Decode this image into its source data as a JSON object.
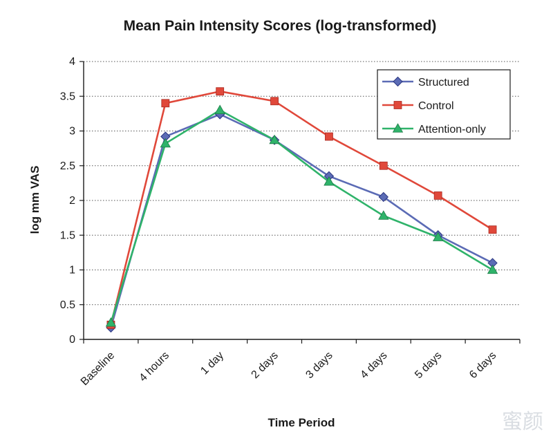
{
  "chart_data": {
    "type": "line",
    "title": "Mean Pain Intensity Scores (log-transformed)",
    "xlabel": "Time Period",
    "ylabel": "log mm VAS",
    "categories": [
      "Baseline",
      "4 hours",
      "1 day",
      "2 days",
      "3 days",
      "4 days",
      "5 days",
      "6 days"
    ],
    "ylim": [
      0,
      4
    ],
    "yticks": [
      "0",
      "0.5",
      "1",
      "1.5",
      "2",
      "2.5",
      "3",
      "3.5",
      "4"
    ],
    "grid": "horizontal dotted",
    "legend_position": "top-right",
    "series": [
      {
        "name": "Structured",
        "marker": "diamond",
        "color": "#5b6bb5",
        "values": [
          0.17,
          2.92,
          3.24,
          2.87,
          2.35,
          2.05,
          1.5,
          1.1
        ]
      },
      {
        "name": "Control",
        "marker": "square",
        "color": "#e0483a",
        "values": [
          0.21,
          3.4,
          3.57,
          3.43,
          2.92,
          2.5,
          2.07,
          1.58
        ]
      },
      {
        "name": "Attention-only",
        "marker": "triangle",
        "color": "#2fb36a",
        "values": [
          0.24,
          2.82,
          3.3,
          2.87,
          2.27,
          1.78,
          1.47,
          1.0
        ]
      }
    ]
  },
  "watermark": "蜜颜"
}
